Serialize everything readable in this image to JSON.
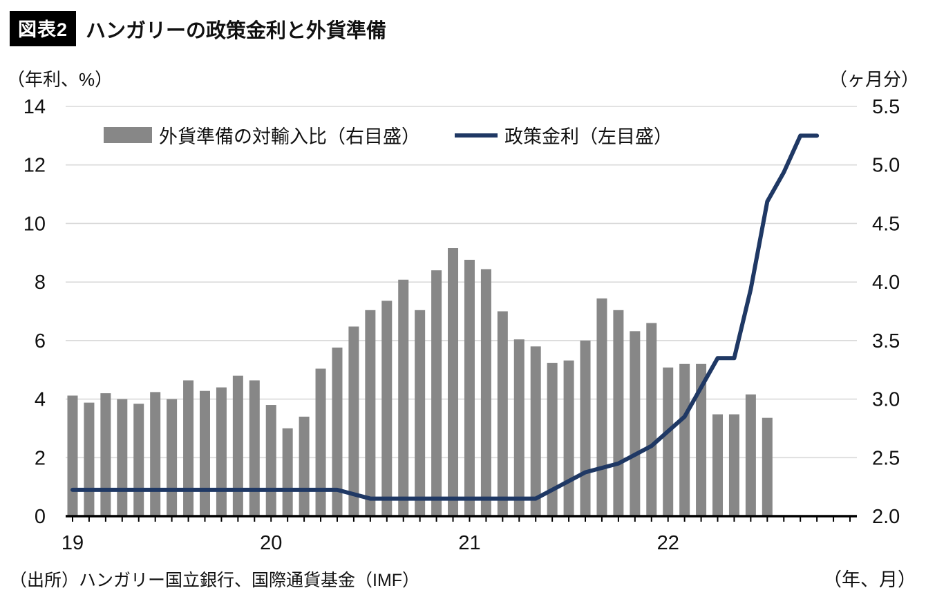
{
  "header": {
    "badge": "図表2",
    "title": "ハンガリーの政策金利と外貨準備"
  },
  "axes": {
    "left_unit": "（年利、%）",
    "right_unit": "（ヶ月分）",
    "x_unit": "（年、月）",
    "left_tick_labels": [
      "0",
      "2",
      "4",
      "6",
      "8",
      "10",
      "12",
      "14"
    ],
    "right_tick_labels": [
      "2.0",
      "2.5",
      "3.0",
      "3.5",
      "4.0",
      "4.5",
      "5.0",
      "5.5"
    ],
    "left_min": 0,
    "left_max": 14,
    "right_min": 2.0,
    "right_max": 5.5,
    "year_labels": [
      {
        "label": "19",
        "month_index": 0
      },
      {
        "label": "20",
        "month_index": 12
      },
      {
        "label": "21",
        "month_index": 24
      },
      {
        "label": "22",
        "month_index": 36
      }
    ]
  },
  "legend": [
    {
      "type": "bar",
      "label": "外貨準備の対輸入比（右目盛）",
      "color": "#878787"
    },
    {
      "type": "line",
      "label": "政策金利（左目盛）",
      "color": "#1f3864"
    }
  ],
  "footer": {
    "source": "（出所）ハンガリー国立銀行、国際通貨基金（IMF）"
  },
  "chart_data": {
    "type": "bar",
    "title": "ハンガリーの政策金利と外貨準備",
    "x": [
      "2019-01",
      "2019-02",
      "2019-03",
      "2019-04",
      "2019-05",
      "2019-06",
      "2019-07",
      "2019-08",
      "2019-09",
      "2019-10",
      "2019-11",
      "2019-12",
      "2020-01",
      "2020-02",
      "2020-03",
      "2020-04",
      "2020-05",
      "2020-06",
      "2020-07",
      "2020-08",
      "2020-09",
      "2020-10",
      "2020-11",
      "2020-12",
      "2021-01",
      "2021-02",
      "2021-03",
      "2021-04",
      "2021-05",
      "2021-06",
      "2021-07",
      "2021-08",
      "2021-09",
      "2021-10",
      "2021-11",
      "2021-12",
      "2022-01",
      "2022-02",
      "2022-03",
      "2022-04",
      "2022-05",
      "2022-06",
      "2022-07",
      "2022-08",
      "2022-09",
      "2022-10",
      "2022-11",
      "2022-12"
    ],
    "grid": true,
    "legend_position": "top-inside",
    "series": [
      {
        "name": "外貨準備の対輸入比（右目盛）",
        "type": "bar",
        "axis": "right",
        "color": "#878787",
        "unit": "ヶ月分",
        "values": [
          3.03,
          2.97,
          3.05,
          3.0,
          2.96,
          3.06,
          3.0,
          3.16,
          3.07,
          3.1,
          3.2,
          3.16,
          2.95,
          2.75,
          2.85,
          3.26,
          3.44,
          3.62,
          3.76,
          3.84,
          4.02,
          3.76,
          4.1,
          4.29,
          4.19,
          4.11,
          3.75,
          3.51,
          3.45,
          3.31,
          3.33,
          3.5,
          3.86,
          3.76,
          3.58,
          3.65,
          3.27,
          3.3,
          3.3,
          2.87,
          2.87,
          3.04,
          2.84,
          null,
          null,
          null,
          null,
          null
        ]
      },
      {
        "name": "政策金利（左目盛）",
        "type": "line",
        "axis": "left",
        "color": "#1f3864",
        "unit": "%",
        "values": [
          0.9,
          0.9,
          0.9,
          0.9,
          0.9,
          0.9,
          0.9,
          0.9,
          0.9,
          0.9,
          0.9,
          0.9,
          0.9,
          0.9,
          0.9,
          0.9,
          0.9,
          0.75,
          0.6,
          0.6,
          0.6,
          0.6,
          0.6,
          0.6,
          0.6,
          0.6,
          0.6,
          0.6,
          0.6,
          0.9,
          1.2,
          1.5,
          1.65,
          1.8,
          2.1,
          2.4,
          2.9,
          3.4,
          4.4,
          5.4,
          5.4,
          7.75,
          10.75,
          11.75,
          13.0,
          13.0,
          null,
          null
        ]
      }
    ],
    "left_axis": {
      "label": "年利、%",
      "range": [
        0,
        14
      ],
      "tick_step": 2
    },
    "right_axis": {
      "label": "ヶ月分",
      "range": [
        2.0,
        5.5
      ],
      "tick_step": 0.5
    }
  }
}
